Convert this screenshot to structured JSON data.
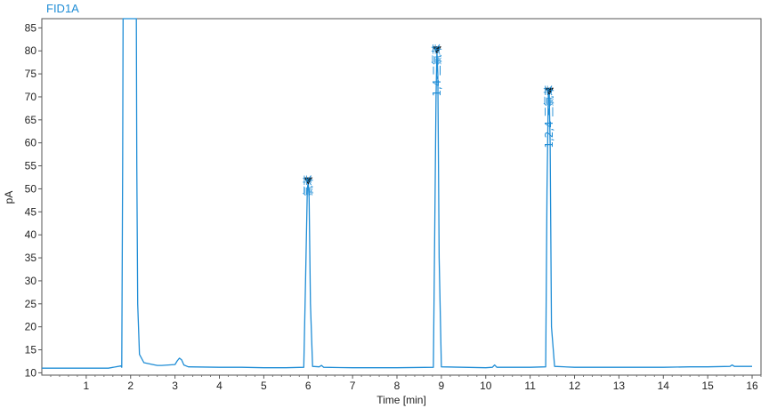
{
  "chart_data": {
    "type": "line",
    "title": "FID1A",
    "xlabel": "Time [min]",
    "ylabel": "pA",
    "xlim": [
      0,
      16.2
    ],
    "ylim": [
      9.5,
      87
    ],
    "xticks": [
      1,
      2,
      3,
      4,
      5,
      6,
      7,
      8,
      9,
      10,
      11,
      12,
      13,
      14,
      15,
      16
    ],
    "yticks": [
      10,
      15,
      20,
      25,
      30,
      35,
      40,
      45,
      50,
      55,
      60,
      65,
      70,
      75,
      80,
      85
    ],
    "line_color": "#1f8dd6",
    "series": [
      {
        "x": [
          0.0,
          1.5,
          1.78,
          1.8,
          1.82,
          1.83,
          1.84,
          1.9,
          2.1,
          2.13,
          2.14,
          2.16,
          2.2,
          2.3,
          2.5,
          2.6,
          2.7,
          3.0,
          3.05,
          3.1,
          3.15,
          3.2,
          3.3,
          4.0,
          4.5,
          5.0,
          5.5,
          5.9,
          5.94,
          5.98,
          6.0,
          6.02,
          6.05,
          6.1,
          6.25,
          6.3,
          6.35,
          7.0,
          8.0,
          8.82,
          8.85,
          8.88,
          8.9,
          8.92,
          8.95,
          9.0,
          10.0,
          10.15,
          10.2,
          10.25,
          11.0,
          11.35,
          11.38,
          11.41,
          11.43,
          11.45,
          11.48,
          11.55,
          12.0,
          13.0,
          14.0,
          14.6,
          15.0,
          15.5,
          15.55,
          15.6,
          16.0
        ],
        "y": [
          11.0,
          11.0,
          11.5,
          11.2,
          55.0,
          87.0,
          87.0,
          87.0,
          87.0,
          87.0,
          55.0,
          25.0,
          14.0,
          12.2,
          11.8,
          11.6,
          11.6,
          11.8,
          12.6,
          13.2,
          12.8,
          11.7,
          11.3,
          11.2,
          11.2,
          11.1,
          11.1,
          11.2,
          30.0,
          50.0,
          51.5,
          48.0,
          25.0,
          11.4,
          11.3,
          11.6,
          11.2,
          11.1,
          11.1,
          11.2,
          40.0,
          70.0,
          80.0,
          75.0,
          35.0,
          11.3,
          11.1,
          11.2,
          11.7,
          11.2,
          11.2,
          11.3,
          50.0,
          71.0,
          71.0,
          60.0,
          20.0,
          11.4,
          11.2,
          11.2,
          11.2,
          11.3,
          11.3,
          11.4,
          11.7,
          11.4,
          11.4
        ]
      }
    ],
    "peaks": [
      {
        "label": "氯苯",
        "x": 6.0,
        "y": 51.5
      },
      {
        "label": "1,4-二氯苯",
        "x": 8.9,
        "y": 80.0
      },
      {
        "label": "1,2,4-三氯苯",
        "x": 11.43,
        "y": 71.0
      }
    ]
  }
}
